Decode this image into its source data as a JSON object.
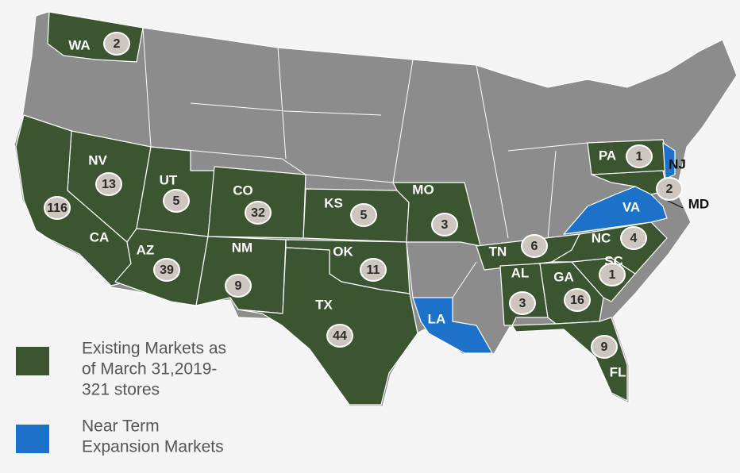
{
  "map": {
    "states": [
      {
        "abbr": "WA",
        "count": 2,
        "color": "#3b5530"
      },
      {
        "abbr": "NV",
        "count": 13,
        "color": "#3b5530"
      },
      {
        "abbr": "UT",
        "count": 5,
        "color": "#3b5530"
      },
      {
        "abbr": "CO",
        "count": 32,
        "color": "#3b5530"
      },
      {
        "abbr": "KS",
        "count": 5,
        "color": "#3b5530"
      },
      {
        "abbr": "MO",
        "count": 3,
        "color": "#3b5530"
      },
      {
        "abbr": "CA",
        "count": 116,
        "color": "#3b5530"
      },
      {
        "abbr": "AZ",
        "count": 39,
        "color": "#3b5530"
      },
      {
        "abbr": "NM",
        "count": 9,
        "color": "#3b5530"
      },
      {
        "abbr": "OK",
        "count": 11,
        "color": "#3b5530"
      },
      {
        "abbr": "TX",
        "count": 44,
        "color": "#3b5530"
      },
      {
        "abbr": "LA",
        "color": "#1c72c9"
      },
      {
        "abbr": "TN",
        "count": 6,
        "color": "#3b5530"
      },
      {
        "abbr": "AL",
        "count": 3,
        "color": "#3b5530"
      },
      {
        "abbr": "GA",
        "count": 16,
        "color": "#3b5530"
      },
      {
        "abbr": "NC",
        "count": 4,
        "color": "#3b5530"
      },
      {
        "abbr": "SC",
        "count": 1,
        "color": "#3b5530"
      },
      {
        "abbr": "FL",
        "count": 9,
        "color": "#3b5530"
      },
      {
        "abbr": "PA",
        "count": 1,
        "color": "#3b5530"
      },
      {
        "abbr": "NJ",
        "color": "#1c72c9"
      },
      {
        "abbr": "MD",
        "count": 2,
        "color": "#3b5530"
      },
      {
        "abbr": "VA",
        "color": "#1c72c9"
      }
    ],
    "legend": [
      {
        "lines": [
          "Existing Markets as",
          "of March 31,2019-",
          "321 stores"
        ],
        "color": "#3b5530"
      },
      {
        "lines": [
          "Near Term",
          "Expansion Markets"
        ],
        "color": "#1c72c9"
      }
    ]
  }
}
